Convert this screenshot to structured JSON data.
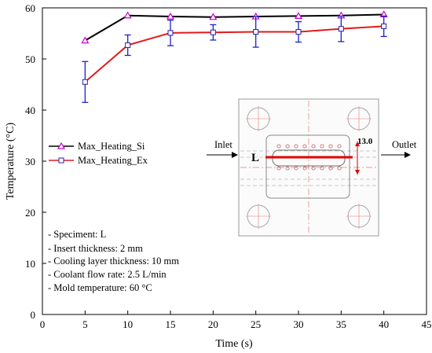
{
  "chart_data": {
    "type": "line",
    "xlabel": "Time (s)",
    "ylabel": "Temperature (°C)",
    "xlim": [
      0,
      45
    ],
    "ylim": [
      0,
      60
    ],
    "xticks": [
      0,
      5,
      10,
      15,
      20,
      25,
      30,
      35,
      40,
      45
    ],
    "yticks": [
      0,
      10,
      20,
      30,
      40,
      50,
      60
    ],
    "grid": false,
    "legend_position": "middle-left",
    "series": [
      {
        "name": "Max_Heating_Si",
        "color": "#000000",
        "marker": "triangle",
        "marker_color": "#cc00cc",
        "x": [
          5,
          10,
          15,
          20,
          25,
          30,
          35,
          40
        ],
        "y": [
          53.6,
          58.5,
          58.3,
          58.2,
          58.3,
          58.4,
          58.5,
          58.7
        ]
      },
      {
        "name": "Max_Heating_Ex",
        "color": "#e31a1c",
        "marker": "square",
        "marker_color": "#2222aa",
        "error_bar_color": "#1f1fd0",
        "x": [
          5,
          10,
          15,
          20,
          25,
          30,
          35,
          40
        ],
        "y": [
          45.5,
          52.7,
          55.1,
          55.2,
          55.3,
          55.3,
          55.9,
          56.4
        ],
        "error": [
          4.0,
          2.0,
          2.5,
          1.5,
          3.0,
          2.0,
          2.5,
          2.0
        ]
      }
    ],
    "notes": [
      "- Speciment: L",
      "- Insert thickness: 2 mm",
      "- Cooling layer thickness: 10  mm",
      "- Coolant flow rate: 2.5 L/min",
      "- Mold temperature: 60 °C"
    ],
    "inset": {
      "inlet_label": "Inlet",
      "outlet_label": "Outlet",
      "length_label": "L",
      "dimension_label": "13.0"
    }
  }
}
